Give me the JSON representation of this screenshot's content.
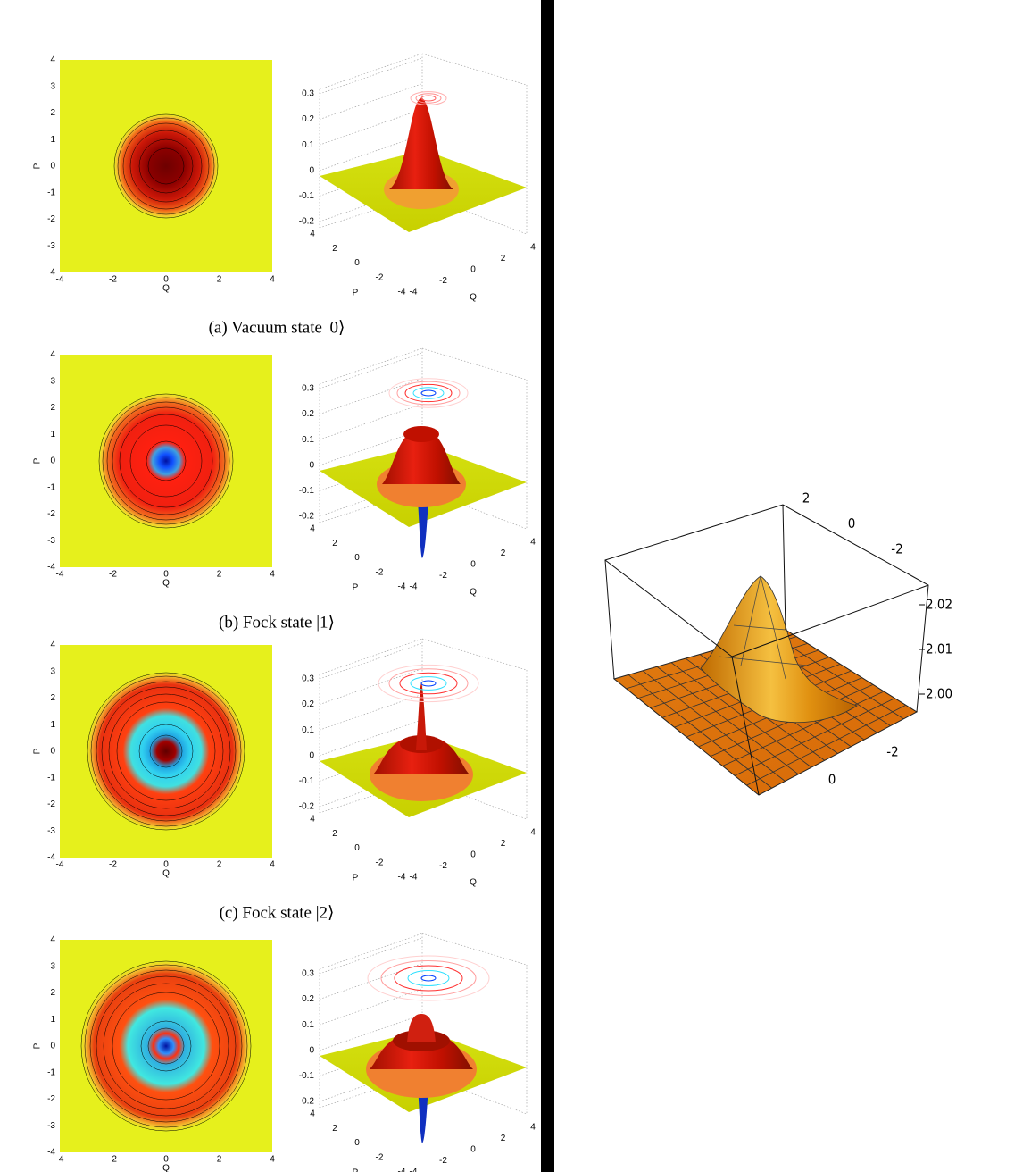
{
  "panels": [
    {
      "caption": "(a) Vacuum state |0⟩",
      "contour": {
        "xlabel": "Q",
        "ylabel": "P",
        "xticks": [
          -4,
          -2,
          0,
          2,
          4
        ],
        "yticks": [
          -4,
          -3,
          -2,
          -1,
          0,
          1,
          2,
          3,
          4
        ]
      },
      "surface": {
        "zticks": [
          -0.2,
          -0.1,
          0,
          0.1,
          0.2,
          0.3
        ],
        "pticks": [
          4,
          2,
          0,
          -2,
          -4
        ],
        "qticks": [
          -4,
          -2,
          0,
          2,
          4
        ],
        "plabel": "P",
        "qlabel": "Q"
      }
    },
    {
      "caption": "(b) Fock state |1⟩",
      "contour": {
        "xlabel": "Q",
        "ylabel": "P",
        "xticks": [
          -4,
          -2,
          0,
          2,
          4
        ],
        "yticks": [
          -4,
          -3,
          -2,
          -1,
          0,
          1,
          2,
          3,
          4
        ]
      },
      "surface": {
        "zticks": [
          -0.2,
          -0.1,
          0,
          0.1,
          0.2,
          0.3
        ],
        "pticks": [
          4,
          2,
          0,
          -2,
          -4
        ],
        "qticks": [
          -4,
          -2,
          0,
          2,
          4
        ],
        "plabel": "P",
        "qlabel": "Q"
      }
    },
    {
      "caption": "(c) Fock state |2⟩",
      "contour": {
        "xlabel": "Q",
        "ylabel": "P",
        "xticks": [
          -4,
          -2,
          0,
          2,
          4
        ],
        "yticks": [
          -4,
          -3,
          -2,
          -1,
          0,
          1,
          2,
          3,
          4
        ]
      },
      "surface": {
        "zticks": [
          -0.2,
          -0.1,
          0,
          0.1,
          0.2,
          0.3
        ],
        "pticks": [
          4,
          2,
          0,
          -2,
          -4
        ],
        "qticks": [
          -4,
          -2,
          0,
          2,
          4
        ],
        "plabel": "P",
        "qlabel": "Q"
      }
    },
    {
      "contour": {
        "xlabel": "Q",
        "ylabel": "P",
        "xticks": [
          -4,
          -2,
          0,
          2,
          4
        ],
        "yticks": [
          -4,
          -3,
          -2,
          -1,
          0,
          1,
          2,
          3,
          4
        ]
      },
      "surface": {
        "zticks": [
          -0.2,
          -0.1,
          0,
          0.1,
          0.2,
          0.3
        ],
        "pticks": [
          4,
          2,
          0,
          -2,
          -4
        ],
        "qticks": [
          -4,
          -2,
          0,
          2,
          4
        ],
        "plabel": "P",
        "qlabel": "Q"
      }
    }
  ],
  "right_plot": {
    "zticks": [
      {
        "value": 2,
        "label": "2.00"
      },
      {
        "value": 2.01,
        "label": "2.01"
      },
      {
        "value": 2.02,
        "label": "2.02"
      }
    ],
    "top_ticks": [
      2,
      0,
      -2
    ],
    "front_ticks": [
      -2,
      0
    ]
  }
}
